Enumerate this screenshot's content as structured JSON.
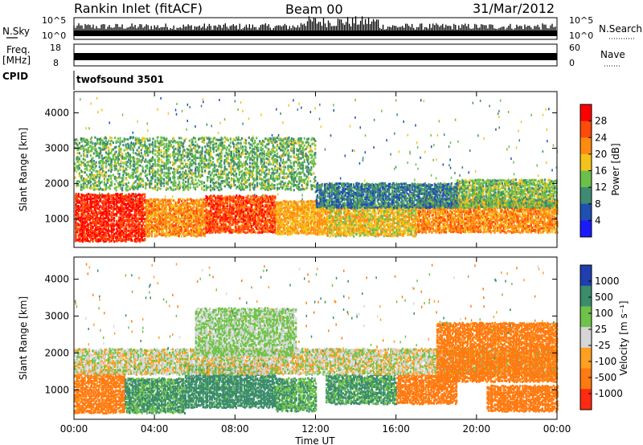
{
  "header": {
    "station": "Rankin Inlet (fitACF)",
    "beam": "Beam 00",
    "date": "31/Mar/2012"
  },
  "params": {
    "nsky_label": "N.Sky",
    "nsky_ticks": [
      "10^5",
      "10^0"
    ],
    "nsearch_label": "N.Search",
    "nsearch_ticks": [
      "10^5",
      "10^0"
    ],
    "freq_label": "Freq.",
    "freq_unit": "[MHz]",
    "freq_ticks": [
      "18",
      "8"
    ],
    "nave_label": "Nave",
    "nave_ticks": [
      "60",
      "0"
    ],
    "cpid_label": "CPID",
    "cpid_value": "twofsound 3501"
  },
  "colors": {
    "power_scale": [
      "#1a1aff",
      "#1f4fb0",
      "#3f8a73",
      "#6bbf4a",
      "#f5c21b",
      "#ff8a10",
      "#ff4a08",
      "#ff0000"
    ],
    "velocity_scale": [
      "#1f3fb0",
      "#3a8c6a",
      "#6fc24a",
      "#d6d6d6",
      "#ffa020",
      "#ff7a10",
      "#ff2a10"
    ]
  },
  "chart_data": [
    {
      "type": "heatmap",
      "panel": "power",
      "ylabel": "Slant Range [km]",
      "yticks": [
        "1000",
        "2000",
        "3000",
        "4000"
      ],
      "ylim": [
        200,
        4600
      ],
      "xlim": [
        0,
        24
      ],
      "colorbar_label": "Power [dB]",
      "colorbar_ticks": [
        "4",
        "8",
        "12",
        "16",
        "20",
        "24",
        "28"
      ],
      "colorbar_range": [
        0,
        32
      ],
      "bands": [
        {
          "t0": 0,
          "t1": 3.5,
          "r0": 350,
          "r1": 1700,
          "level": 28
        },
        {
          "t0": 3.5,
          "t1": 6.5,
          "r0": 500,
          "r1": 1550,
          "level": 22
        },
        {
          "t0": 6.5,
          "t1": 10,
          "r0": 600,
          "r1": 1650,
          "level": 26
        },
        {
          "t0": 10,
          "t1": 12.5,
          "r0": 550,
          "r1": 1500,
          "level": 20
        },
        {
          "t0": 12.5,
          "t1": 17,
          "r0": 500,
          "r1": 1400,
          "level": 18
        },
        {
          "t0": 17,
          "t1": 24,
          "r0": 600,
          "r1": 1550,
          "level": 22
        },
        {
          "t0": 19,
          "t1": 24,
          "r0": 1300,
          "r1": 2100,
          "level": 14
        },
        {
          "t0": 12,
          "t1": 19,
          "r0": 1300,
          "r1": 2000,
          "level": 9
        },
        {
          "t0": 0,
          "t1": 12,
          "r0": 1800,
          "r1": 3300,
          "level": 13
        }
      ]
    },
    {
      "type": "heatmap",
      "panel": "velocity",
      "ylabel": "Slant Range [km]",
      "yticks": [
        "1000",
        "2000",
        "3000",
        "4000"
      ],
      "ylim": [
        200,
        4600
      ],
      "xlim": [
        0,
        24
      ],
      "xlabel": "Time UT",
      "xticks": [
        "00:00",
        "04:00",
        "08:00",
        "12:00",
        "16:00",
        "20:00",
        "00:00"
      ],
      "colorbar_label": "Velocity [m s⁻¹]",
      "colorbar_ticks": [
        "1000",
        "500",
        "100",
        "25",
        "-25",
        "-100",
        "-500",
        "-1000"
      ],
      "bands": [
        {
          "t0": 0,
          "t1": 2.5,
          "r0": 350,
          "r1": 1500,
          "level": -150
        },
        {
          "t0": 2.5,
          "t1": 5.5,
          "r0": 350,
          "r1": 1300,
          "level": 120
        },
        {
          "t0": 5.5,
          "t1": 10,
          "r0": 500,
          "r1": 1700,
          "level": 150
        },
        {
          "t0": 10,
          "t1": 12,
          "r0": 400,
          "r1": 1300,
          "level": 100
        },
        {
          "t0": 12.5,
          "t1": 16,
          "r0": 600,
          "r1": 1400,
          "level": 120
        },
        {
          "t0": 16,
          "t1": 19,
          "r0": 600,
          "r1": 1400,
          "level": -180
        },
        {
          "t0": 20.5,
          "t1": 24,
          "r0": 400,
          "r1": 1100,
          "level": -200
        },
        {
          "t0": 0,
          "t1": 24,
          "r0": 1400,
          "r1": 2100,
          "level": 0
        },
        {
          "t0": 18,
          "t1": 24,
          "r0": 1200,
          "r1": 2800,
          "level": -150
        },
        {
          "t0": 6,
          "t1": 11,
          "r0": 1900,
          "r1": 3200,
          "level": 40
        }
      ]
    }
  ]
}
